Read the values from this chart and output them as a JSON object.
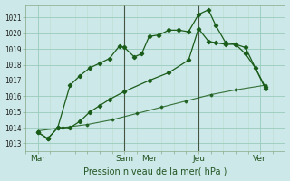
{
  "bg_color": "#cce8e8",
  "grid_color_major": "#99ccbb",
  "grid_color_minor": "#bbddcc",
  "line_color": "#1a5c1a",
  "xlabel": "Pression niveau de la mer( hPa )",
  "ylim": [
    1012.5,
    1021.8
  ],
  "xlim": [
    -0.5,
    10.0
  ],
  "yticks": [
    1013,
    1014,
    1015,
    1016,
    1017,
    1018,
    1019,
    1020,
    1021
  ],
  "xtick_labels": [
    "Mar",
    "Sam",
    "Mer",
    "Jeu",
    "Ven"
  ],
  "xtick_positions": [
    0.0,
    3.5,
    4.5,
    6.5,
    9.0
  ],
  "vlines": [
    3.5,
    6.5
  ],
  "line1_x": [
    0.0,
    0.4,
    0.8,
    1.3,
    1.7,
    2.1,
    2.5,
    2.9,
    3.3,
    3.5,
    3.9,
    4.2,
    4.5,
    4.9,
    5.3,
    5.7,
    6.1,
    6.5,
    6.9,
    7.2,
    7.6,
    8.0,
    8.4,
    8.8,
    9.2
  ],
  "line1_y": [
    1013.7,
    1013.3,
    1014.0,
    1016.7,
    1017.3,
    1017.8,
    1018.1,
    1018.4,
    1019.2,
    1019.1,
    1018.5,
    1018.7,
    1019.8,
    1019.9,
    1020.2,
    1020.2,
    1020.1,
    1021.2,
    1021.5,
    1020.5,
    1019.4,
    1019.3,
    1018.7,
    1017.8,
    1016.6
  ],
  "line2_x": [
    0.0,
    0.4,
    0.8,
    1.3,
    1.7,
    2.1,
    2.5,
    2.9,
    3.5,
    4.5,
    5.3,
    6.1,
    6.5,
    6.9,
    7.2,
    7.6,
    8.0,
    8.4,
    9.2
  ],
  "line2_y": [
    1013.7,
    1013.3,
    1014.0,
    1014.0,
    1014.4,
    1015.0,
    1015.4,
    1015.8,
    1016.3,
    1017.0,
    1017.5,
    1018.3,
    1020.3,
    1019.5,
    1019.4,
    1019.3,
    1019.3,
    1019.1,
    1016.5
  ],
  "line3_x": [
    0.0,
    1.0,
    2.0,
    3.0,
    4.0,
    5.0,
    6.0,
    7.0,
    8.0,
    9.2
  ],
  "line3_y": [
    1013.8,
    1014.0,
    1014.2,
    1014.5,
    1014.9,
    1015.3,
    1015.7,
    1016.1,
    1016.4,
    1016.7
  ]
}
